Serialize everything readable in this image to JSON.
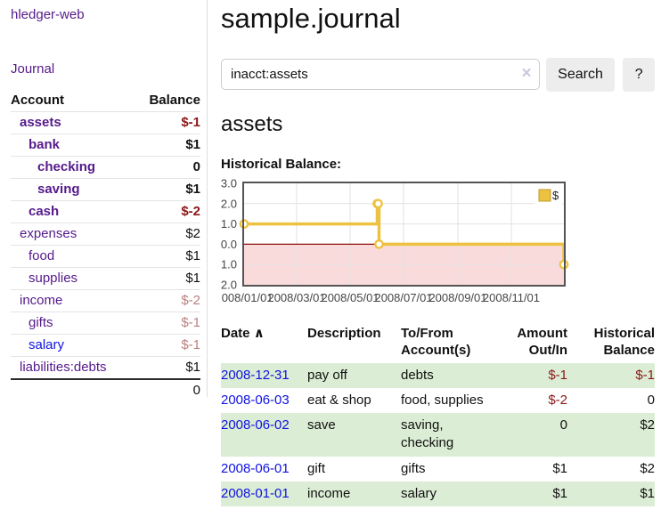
{
  "app": {
    "title": "hledger-web"
  },
  "sidebar": {
    "journal_link": "Journal",
    "accounts_table": {
      "header_account": "Account",
      "header_balance": "Balance",
      "rows": [
        {
          "name": "assets",
          "indent": 1,
          "bold": true,
          "balance": "$-1"
        },
        {
          "name": "bank",
          "indent": 2,
          "bold": true,
          "balance": "$1"
        },
        {
          "name": "checking",
          "indent": 3,
          "bold": true,
          "balance": "0"
        },
        {
          "name": "saving",
          "indent": 3,
          "bold": true,
          "balance": "$1"
        },
        {
          "name": "cash",
          "indent": 2,
          "bold": true,
          "balance": "$-2"
        },
        {
          "name": "expenses",
          "indent": 1,
          "bold": false,
          "balance": "$2"
        },
        {
          "name": "food",
          "indent": 2,
          "bold": false,
          "balance": "$1"
        },
        {
          "name": "supplies",
          "indent": 2,
          "bold": false,
          "balance": "$1"
        },
        {
          "name": "income",
          "indent": 1,
          "bold": false,
          "balance": "$-2"
        },
        {
          "name": "gifts",
          "indent": 2,
          "bold": false,
          "balance": "$-1"
        },
        {
          "name": "salary",
          "indent": 2,
          "bold": false,
          "balance": "$-1",
          "blue": true
        },
        {
          "name": "liabilities:debts",
          "indent": 1,
          "bold": false,
          "balance": "$1"
        }
      ],
      "total": "0"
    }
  },
  "main": {
    "title": "sample.journal",
    "search": {
      "value": "inacct:assets",
      "clear_icon": "×",
      "button_label": "Search",
      "help_label": "?"
    },
    "account_heading": "assets",
    "chart_heading": "Historical Balance:",
    "chart_data": {
      "type": "line",
      "step": true,
      "title": "Historical Balance",
      "legend": "$",
      "legend_position": "top-right",
      "grid": true,
      "series": [
        {
          "name": "$",
          "color": "#edc240",
          "points": [
            [
              "2008-01-01",
              1
            ],
            [
              "2008-06-01",
              2
            ],
            [
              "2008-06-02",
              2
            ],
            [
              "2008-06-03",
              0
            ],
            [
              "2008-12-31",
              -1
            ]
          ]
        }
      ],
      "ylim": [
        -2,
        3
      ],
      "yticks": [
        3.0,
        2.0,
        1.0,
        0.0,
        -1.0,
        -2.0
      ],
      "xlim": [
        "2008/01/01",
        "2008/12/31"
      ],
      "xticks": [
        "2008/01/01",
        "2008/03/01",
        "2008/05/01",
        "2008/07/01",
        "2008/09/01",
        "2008/11/01"
      ],
      "negative_fill": "#f9dbdb",
      "zero_line_color": "#8b0e0e"
    },
    "register_table": {
      "headers": {
        "date": "Date",
        "sort_icon": "∧",
        "description": "Description",
        "account_line1": "To/From",
        "account_line2": "Account(s)",
        "amount_line1": "Amount",
        "amount_line2": "Out/In",
        "balance_line1": "Historical",
        "balance_line2": "Balance"
      },
      "rows": [
        {
          "date": "2008-12-31",
          "description": "pay off",
          "accounts": [
            "debts"
          ],
          "amount": "$-1",
          "balance": "$-1"
        },
        {
          "date": "2008-06-03",
          "description": "eat & shop",
          "accounts": [
            "food",
            "supplies"
          ],
          "amount": "$-2",
          "balance": "0"
        },
        {
          "date": "2008-06-02",
          "description": "save",
          "accounts": [
            "saving",
            "checking"
          ],
          "amount": "0",
          "balance": "$2"
        },
        {
          "date": "2008-06-01",
          "description": "gift",
          "accounts": [
            "gifts"
          ],
          "amount": "$1",
          "balance": "$2"
        },
        {
          "date": "2008-01-01",
          "description": "income",
          "accounts": [
            "salary"
          ],
          "amount": "$1",
          "balance": "$1"
        }
      ]
    }
  }
}
